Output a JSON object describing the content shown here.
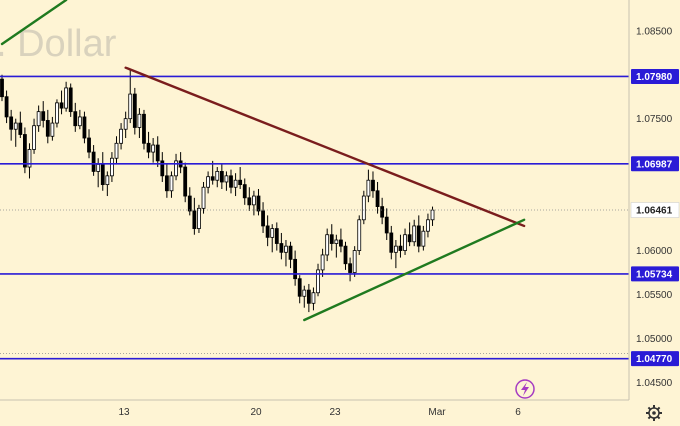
{
  "chart_data": {
    "type": "candlestick",
    "watermark": ". Dollar",
    "y_ticks": [
      1.085,
      1.08,
      1.075,
      1.07,
      1.065,
      1.06,
      1.055,
      1.05,
      1.045
    ],
    "y_tick_labels": [
      "1.08500",
      "1.07980",
      "1.07500",
      "1.06987",
      "1.06461",
      "1.06000",
      "1.05500",
      "1.05000",
      "1.04770",
      "1.04500"
    ],
    "ylim": [
      1.043,
      1.0885
    ],
    "x_ticks": [
      "13",
      "20",
      "23",
      "Mar",
      "6"
    ],
    "horizontal_levels": [
      {
        "label": "1.07980",
        "value": 1.0798,
        "color": "#2a1bd6"
      },
      {
        "label": "1.06987",
        "value": 1.06987,
        "color": "#2a1bd6"
      },
      {
        "label": "1.05734",
        "value": 1.05734,
        "color": "#2a1bd6"
      },
      {
        "label": "1.04770",
        "value": 1.0477,
        "color": "#2a1bd6"
      }
    ],
    "last_price": {
      "label": "1.06461",
      "value": 1.06461
    },
    "trend_lines": [
      {
        "name": "resistance",
        "color": "#7a1d1d",
        "from": {
          "bar": 27,
          "price": 1.0808
        },
        "to": {
          "bar": 114,
          "price": 1.0628
        }
      },
      {
        "name": "support",
        "color": "#1f7a1f",
        "from": {
          "bar": 66,
          "price": 1.0521
        },
        "to": {
          "bar": 114,
          "price": 1.0635
        }
      },
      {
        "name": "upper-left",
        "color": "#1f7a1f",
        "from": {
          "bar": 0,
          "price": 1.0835
        },
        "to": {
          "bar": 14,
          "price": 1.0885
        }
      }
    ],
    "bars": [
      [
        1.0795,
        1.08,
        1.077,
        1.0775
      ],
      [
        1.0775,
        1.0782,
        1.0745,
        1.0752
      ],
      [
        1.0752,
        1.076,
        1.0725,
        1.0738
      ],
      [
        1.0738,
        1.075,
        1.0718,
        1.0745
      ],
      [
        1.0745,
        1.0758,
        1.0728,
        1.0732
      ],
      [
        1.0732,
        1.074,
        1.0688,
        1.0695
      ],
      [
        1.0695,
        1.0722,
        1.0682,
        1.0715
      ],
      [
        1.0715,
        1.075,
        1.071,
        1.0742
      ],
      [
        1.0742,
        1.0765,
        1.0735,
        1.0758
      ],
      [
        1.0758,
        1.077,
        1.074,
        1.0748
      ],
      [
        1.0748,
        1.076,
        1.0722,
        1.073
      ],
      [
        1.073,
        1.0752,
        1.0725,
        1.0745
      ],
      [
        1.0745,
        1.0772,
        1.074,
        1.0768
      ],
      [
        1.0768,
        1.0782,
        1.0755,
        1.0762
      ],
      [
        1.0762,
        1.0792,
        1.0758,
        1.0785
      ],
      [
        1.0785,
        1.079,
        1.0752,
        1.0758
      ],
      [
        1.0758,
        1.0768,
        1.0735,
        1.0742
      ],
      [
        1.0742,
        1.076,
        1.0738,
        1.0752
      ],
      [
        1.0752,
        1.0758,
        1.0722,
        1.0728
      ],
      [
        1.0728,
        1.0738,
        1.0705,
        1.0712
      ],
      [
        1.0712,
        1.072,
        1.0685,
        1.069
      ],
      [
        1.069,
        1.0705,
        1.0672,
        1.0698
      ],
      [
        1.0698,
        1.0712,
        1.0668,
        1.0675
      ],
      [
        1.0675,
        1.069,
        1.0662,
        1.0685
      ],
      [
        1.0685,
        1.0712,
        1.0678,
        1.0705
      ],
      [
        1.0705,
        1.073,
        1.0698,
        1.0722
      ],
      [
        1.0722,
        1.0745,
        1.0715,
        1.0738
      ],
      [
        1.0738,
        1.0758,
        1.0728,
        1.075
      ],
      [
        1.075,
        1.0805,
        1.0745,
        1.0778
      ],
      [
        1.0778,
        1.0785,
        1.0732,
        1.074
      ],
      [
        1.074,
        1.0762,
        1.0728,
        1.0755
      ],
      [
        1.0755,
        1.076,
        1.0715,
        1.0722
      ],
      [
        1.0722,
        1.0735,
        1.0705,
        1.0712
      ],
      [
        1.0712,
        1.0728,
        1.07,
        1.072
      ],
      [
        1.072,
        1.073,
        1.0695,
        1.0702
      ],
      [
        1.0702,
        1.0712,
        1.0678,
        1.0685
      ],
      [
        1.0685,
        1.0698,
        1.066,
        1.0668
      ],
      [
        1.0668,
        1.069,
        1.066,
        1.0685
      ],
      [
        1.0685,
        1.071,
        1.068,
        1.0702
      ],
      [
        1.0702,
        1.0712,
        1.0688,
        1.0695
      ],
      [
        1.0695,
        1.07,
        1.0655,
        1.0662
      ],
      [
        1.0662,
        1.0672,
        1.064,
        1.0645
      ],
      [
        1.0645,
        1.066,
        1.0618,
        1.0625
      ],
      [
        1.0625,
        1.0652,
        1.062,
        1.0648
      ],
      [
        1.0648,
        1.0678,
        1.0642,
        1.0672
      ],
      [
        1.0672,
        1.069,
        1.0665,
        1.0684
      ],
      [
        1.0684,
        1.0702,
        1.0675,
        1.068
      ],
      [
        1.068,
        1.0695,
        1.0672,
        1.069
      ],
      [
        1.069,
        1.0698,
        1.067,
        1.0678
      ],
      [
        1.0678,
        1.069,
        1.0668,
        1.0685
      ],
      [
        1.0685,
        1.0692,
        1.0665,
        1.0672
      ],
      [
        1.0672,
        1.0688,
        1.0662,
        1.068
      ],
      [
        1.068,
        1.0695,
        1.067,
        1.0675
      ],
      [
        1.0675,
        1.0682,
        1.0652,
        1.066
      ],
      [
        1.066,
        1.0672,
        1.0645,
        1.0652
      ],
      [
        1.0652,
        1.0668,
        1.064,
        1.0662
      ],
      [
        1.0662,
        1.067,
        1.064,
        1.0645
      ],
      [
        1.0645,
        1.0655,
        1.062,
        1.0628
      ],
      [
        1.0628,
        1.064,
        1.0605,
        1.0615
      ],
      [
        1.0615,
        1.063,
        1.0598,
        1.0625
      ],
      [
        1.0625,
        1.0632,
        1.06,
        1.0608
      ],
      [
        1.0608,
        1.062,
        1.059,
        1.0598
      ],
      [
        1.0598,
        1.0612,
        1.0582,
        1.0605
      ],
      [
        1.0605,
        1.061,
        1.058,
        1.059
      ],
      [
        1.059,
        1.06,
        1.056,
        1.0568
      ],
      [
        1.0568,
        1.0572,
        1.054,
        1.0548
      ],
      [
        1.0548,
        1.056,
        1.0535,
        1.0555
      ],
      [
        1.0555,
        1.0562,
        1.053,
        1.054
      ],
      [
        1.054,
        1.0558,
        1.0532,
        1.0552
      ],
      [
        1.0552,
        1.0585,
        1.0548,
        1.0578
      ],
      [
        1.0578,
        1.0602,
        1.057,
        1.0595
      ],
      [
        1.0595,
        1.0625,
        1.0588,
        1.0618
      ],
      [
        1.0618,
        1.063,
        1.06,
        1.0608
      ],
      [
        1.0608,
        1.0618,
        1.0592,
        1.0612
      ],
      [
        1.0612,
        1.0625,
        1.0598,
        1.0605
      ],
      [
        1.0605,
        1.061,
        1.0578,
        1.0585
      ],
      [
        1.0585,
        1.0592,
        1.0565,
        1.0575
      ],
      [
        1.0575,
        1.0605,
        1.057,
        1.06
      ],
      [
        1.06,
        1.064,
        1.0595,
        1.0635
      ],
      [
        1.0635,
        1.0668,
        1.063,
        1.0662
      ],
      [
        1.0662,
        1.0692,
        1.0655,
        1.068
      ],
      [
        1.068,
        1.069,
        1.066,
        1.0668
      ],
      [
        1.0668,
        1.0678,
        1.0642,
        1.065
      ],
      [
        1.065,
        1.066,
        1.063,
        1.0638
      ],
      [
        1.0638,
        1.0648,
        1.0612,
        1.062
      ],
      [
        1.062,
        1.0628,
        1.059,
        1.0598
      ],
      [
        1.0598,
        1.0612,
        1.058,
        1.0605
      ],
      [
        1.0605,
        1.0618,
        1.0592,
        1.06
      ],
      [
        1.06,
        1.0625,
        1.0595,
        1.0618
      ],
      [
        1.0618,
        1.0632,
        1.0605,
        1.061
      ],
      [
        1.061,
        1.0635,
        1.0605,
        1.0628
      ],
      [
        1.0628,
        1.064,
        1.0598,
        1.0605
      ],
      [
        1.0605,
        1.0628,
        1.06,
        1.0622
      ],
      [
        1.0622,
        1.0642,
        1.0615,
        1.0635
      ],
      [
        1.0635,
        1.065,
        1.0628,
        1.0646
      ]
    ]
  },
  "ui": {
    "lightning_icon": "lightning-icon",
    "settings_icon": "gear-icon",
    "colors": {
      "background": "#fef4d4",
      "candle": "#000000",
      "level_line": "#2a1bd6",
      "resistance": "#7a1d1d",
      "support": "#1f7a1f",
      "axis_text": "#333333",
      "lightning": "#a63cc2"
    }
  }
}
